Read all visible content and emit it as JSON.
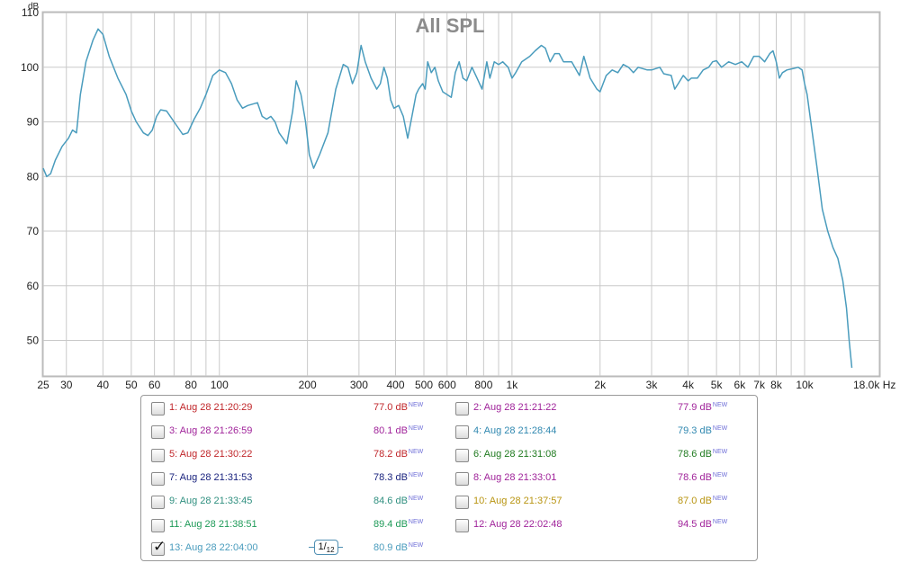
{
  "chart_data": {
    "type": "line",
    "title": "All SPL",
    "ylabel": "dB",
    "xlabel": "Hz",
    "xscale": "log",
    "xlim": [
      25,
      18000
    ],
    "ylim": [
      43.5,
      110
    ],
    "yticks": [
      50,
      60,
      70,
      80,
      90,
      100,
      110
    ],
    "xtick_labels": [
      {
        "v": 25,
        "t": "25"
      },
      {
        "v": 30,
        "t": "30"
      },
      {
        "v": 40,
        "t": "40"
      },
      {
        "v": 50,
        "t": "50"
      },
      {
        "v": 60,
        "t": "60"
      },
      {
        "v": 80,
        "t": "80"
      },
      {
        "v": 100,
        "t": "100"
      },
      {
        "v": 200,
        "t": "200"
      },
      {
        "v": 300,
        "t": "300"
      },
      {
        "v": 400,
        "t": "400"
      },
      {
        "v": 500,
        "t": "500"
      },
      {
        "v": 600,
        "t": "600"
      },
      {
        "v": 800,
        "t": "800"
      },
      {
        "v": 1000,
        "t": "1k"
      },
      {
        "v": 2000,
        "t": "2k"
      },
      {
        "v": 3000,
        "t": "3k"
      },
      {
        "v": 4000,
        "t": "4k"
      },
      {
        "v": 5000,
        "t": "5k"
      },
      {
        "v": 6000,
        "t": "6k"
      },
      {
        "v": 7000,
        "t": "7k"
      },
      {
        "v": 8000,
        "t": "8k"
      },
      {
        "v": 10000,
        "t": "10k"
      },
      {
        "v": 18000,
        "t": "18.0k Hz"
      }
    ],
    "grid": true,
    "series": [
      {
        "name": "13: Aug 28 22:04:00",
        "color": "#4a9cbd",
        "points": [
          [
            25,
            81.5
          ],
          [
            25.7,
            80
          ],
          [
            26.5,
            80.5
          ],
          [
            27.5,
            83
          ],
          [
            29,
            85.5
          ],
          [
            30.5,
            87
          ],
          [
            31.5,
            88.5
          ],
          [
            32.5,
            88
          ],
          [
            33.5,
            95
          ],
          [
            35,
            101
          ],
          [
            37,
            105
          ],
          [
            38.5,
            107
          ],
          [
            40,
            106
          ],
          [
            42,
            102
          ],
          [
            45,
            98
          ],
          [
            48,
            95
          ],
          [
            50,
            92
          ],
          [
            52,
            90
          ],
          [
            55,
            88
          ],
          [
            57,
            87.5
          ],
          [
            59,
            88.5
          ],
          [
            61,
            91
          ],
          [
            63,
            92.2
          ],
          [
            66,
            92
          ],
          [
            70,
            90
          ],
          [
            75,
            87.7
          ],
          [
            78,
            88
          ],
          [
            82,
            90.5
          ],
          [
            86,
            92.5
          ],
          [
            90,
            95
          ],
          [
            95,
            98.5
          ],
          [
            100,
            99.5
          ],
          [
            105,
            99
          ],
          [
            110,
            97
          ],
          [
            115,
            94
          ],
          [
            120,
            92.5
          ],
          [
            125,
            93
          ],
          [
            135,
            93.5
          ],
          [
            140,
            91
          ],
          [
            145,
            90.5
          ],
          [
            150,
            91
          ],
          [
            155,
            90
          ],
          [
            160,
            88
          ],
          [
            170,
            86
          ],
          [
            178,
            92
          ],
          [
            183,
            97.5
          ],
          [
            190,
            95
          ],
          [
            197,
            90
          ],
          [
            203,
            84
          ],
          [
            210,
            81.5
          ],
          [
            220,
            84
          ],
          [
            235,
            88
          ],
          [
            250,
            96
          ],
          [
            265,
            100.5
          ],
          [
            275,
            100
          ],
          [
            285,
            97
          ],
          [
            295,
            99
          ],
          [
            305,
            104
          ],
          [
            315,
            101
          ],
          [
            330,
            98
          ],
          [
            345,
            96
          ],
          [
            355,
            97
          ],
          [
            365,
            100
          ],
          [
            375,
            98
          ],
          [
            385,
            94
          ],
          [
            395,
            92.5
          ],
          [
            410,
            93
          ],
          [
            425,
            91
          ],
          [
            440,
            87
          ],
          [
            455,
            91
          ],
          [
            470,
            95
          ],
          [
            480,
            96
          ],
          [
            495,
            97
          ],
          [
            505,
            96
          ],
          [
            515,
            101
          ],
          [
            530,
            99
          ],
          [
            545,
            100
          ],
          [
            560,
            97.5
          ],
          [
            580,
            95.5
          ],
          [
            600,
            95
          ],
          [
            620,
            94.5
          ],
          [
            640,
            99
          ],
          [
            660,
            101
          ],
          [
            680,
            98
          ],
          [
            700,
            97.5
          ],
          [
            730,
            100
          ],
          [
            760,
            98
          ],
          [
            790,
            96
          ],
          [
            820,
            101
          ],
          [
            840,
            98
          ],
          [
            870,
            101
          ],
          [
            900,
            100.5
          ],
          [
            930,
            101
          ],
          [
            970,
            100
          ],
          [
            1000,
            98
          ],
          [
            1030,
            99
          ],
          [
            1080,
            101
          ],
          [
            1150,
            102
          ],
          [
            1200,
            103
          ],
          [
            1260,
            104
          ],
          [
            1300,
            103.5
          ],
          [
            1350,
            101
          ],
          [
            1400,
            102.5
          ],
          [
            1450,
            102.5
          ],
          [
            1500,
            101
          ],
          [
            1600,
            101
          ],
          [
            1700,
            98.5
          ],
          [
            1760,
            102
          ],
          [
            1850,
            98
          ],
          [
            1950,
            96
          ],
          [
            2000,
            95.5
          ],
          [
            2100,
            98.5
          ],
          [
            2200,
            99.5
          ],
          [
            2300,
            99
          ],
          [
            2400,
            100.5
          ],
          [
            2500,
            100
          ],
          [
            2600,
            99
          ],
          [
            2700,
            100
          ],
          [
            2900,
            99.5
          ],
          [
            3000,
            99.5
          ],
          [
            3200,
            100
          ],
          [
            3300,
            98.8
          ],
          [
            3500,
            98.5
          ],
          [
            3600,
            96
          ],
          [
            3700,
            97
          ],
          [
            3850,
            98.5
          ],
          [
            4000,
            97.5
          ],
          [
            4100,
            98
          ],
          [
            4300,
            98
          ],
          [
            4500,
            99.5
          ],
          [
            4700,
            100
          ],
          [
            4850,
            101
          ],
          [
            5000,
            101.2
          ],
          [
            5200,
            100
          ],
          [
            5500,
            101
          ],
          [
            5800,
            100.5
          ],
          [
            6100,
            101
          ],
          [
            6400,
            100
          ],
          [
            6700,
            102
          ],
          [
            7000,
            102
          ],
          [
            7300,
            101
          ],
          [
            7600,
            102.5
          ],
          [
            7800,
            103
          ],
          [
            8000,
            101
          ],
          [
            8200,
            98
          ],
          [
            8400,
            99
          ],
          [
            8700,
            99.5
          ],
          [
            9200,
            99.8
          ],
          [
            9500,
            100
          ],
          [
            9800,
            99.5
          ],
          [
            10000,
            97
          ],
          [
            10200,
            95
          ],
          [
            10500,
            90
          ],
          [
            11000,
            82
          ],
          [
            11500,
            74
          ],
          [
            12000,
            70
          ],
          [
            12500,
            67
          ],
          [
            13000,
            65
          ],
          [
            13500,
            61
          ],
          [
            13900,
            56
          ],
          [
            14200,
            50
          ],
          [
            14500,
            45
          ]
        ]
      }
    ]
  },
  "legend": {
    "items": [
      {
        "label": "1: Aug 28 21:20:29",
        "value": "77.0 dB",
        "color": "#c0262a",
        "checked": false
      },
      {
        "label": "2: Aug 28 21:21:22",
        "value": "77.9 dB",
        "color": "#a0239a",
        "checked": false
      },
      {
        "label": "3: Aug 28 21:26:59",
        "value": "80.1 dB",
        "color": "#a0239a",
        "checked": false
      },
      {
        "label": "4: Aug 28 21:28:44",
        "value": "79.3 dB",
        "color": "#3088b0",
        "checked": false
      },
      {
        "label": "5: Aug 28 21:30:22",
        "value": "78.2 dB",
        "color": "#c0262a",
        "checked": false
      },
      {
        "label": "6: Aug 28 21:31:08",
        "value": "78.6 dB",
        "color": "#1f7a1f",
        "checked": false
      },
      {
        "label": "7: Aug 28 21:31:53",
        "value": "78.3 dB",
        "color": "#1a237e",
        "checked": false
      },
      {
        "label": "8: Aug 28 21:33:01",
        "value": "78.6 dB",
        "color": "#a0239a",
        "checked": false
      },
      {
        "label": "9: Aug 28 21:33:45",
        "value": "84.6 dB",
        "color": "#2f8f7f",
        "checked": false
      },
      {
        "label": "10: Aug 28 21:37:57",
        "value": "87.0 dB",
        "color": "#b89410",
        "checked": false
      },
      {
        "label": "11: Aug 28 21:38:51",
        "value": "89.4 dB",
        "color": "#1e9a58",
        "checked": false
      },
      {
        "label": "12: Aug 28 22:02:48",
        "value": "94.5 dB",
        "color": "#a0239a",
        "checked": false
      },
      {
        "label": "13: Aug 28 22:04:00",
        "value": "80.9 dB",
        "color": "#4a9cbd",
        "checked": true
      }
    ],
    "new_tag": "NEW",
    "new_color": "#6f6fd8",
    "check_glyph": "✓",
    "pager": {
      "current": "1",
      "total": "12"
    }
  }
}
